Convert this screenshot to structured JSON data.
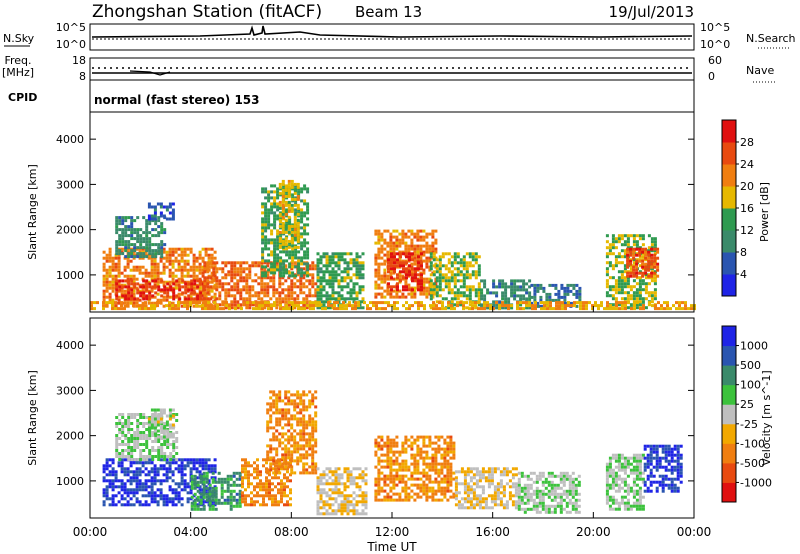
{
  "header": {
    "station": "Zhongshan Station (fitACF)",
    "beam": "Beam 13",
    "date": "19/Jul/2013"
  },
  "noise_panel": {
    "left_label": "N.Sky",
    "right_label": "N.Search",
    "left_ticks": [
      "10^5",
      "10^0"
    ],
    "right_ticks": [
      "10^5",
      "10^0"
    ]
  },
  "freq_panel": {
    "left_label_line1": "Freq.",
    "left_label_line2": "[MHz]",
    "right_label": "Nave",
    "left_ticks": [
      "18",
      "8"
    ],
    "right_ticks": [
      "60",
      "0"
    ]
  },
  "cpid_panel": {
    "label": "CPID",
    "text": "normal (fast stereo) 153"
  },
  "colors": {
    "power": [
      "#1f24e6",
      "#2a55b0",
      "#3a8a6a",
      "#2f9a50",
      "#e6b800",
      "#f07e10",
      "#e84a10",
      "#e01010"
    ],
    "velocity": [
      "#e01010",
      "#e84a10",
      "#f07e10",
      "#f2a800",
      "#bfbfbf",
      "#3cc23c",
      "#3a8a6a",
      "#2a55b0",
      "#1f24e6"
    ]
  },
  "chart_data": [
    {
      "type": "heatmap",
      "title": "",
      "ylabel": "Slant Range [km]",
      "xlabel": "",
      "ylim": [
        180,
        4600
      ],
      "y_ticks": [
        1000,
        2000,
        3000,
        4000
      ],
      "x_ticks": [],
      "colorbar": {
        "label": "Power [dB]",
        "ticks": [
          "4",
          "8",
          "12",
          "16",
          "20",
          "24",
          "28"
        ],
        "range": [
          0,
          32
        ]
      },
      "regions": [
        {
          "t": [
            0.5,
            5.0
          ],
          "r": [
            300,
            1600
          ],
          "value": 22
        },
        {
          "t": [
            1.0,
            4.5
          ],
          "r": [
            500,
            900
          ],
          "value": 28
        },
        {
          "t": [
            1.0,
            3.0
          ],
          "r": [
            1400,
            2300
          ],
          "value": 10
        },
        {
          "t": [
            2.3,
            3.3
          ],
          "r": [
            2250,
            2600
          ],
          "value": 6
        },
        {
          "t": [
            4.5,
            9.0
          ],
          "r": [
            300,
            1300
          ],
          "value": 24
        },
        {
          "t": [
            6.8,
            8.7
          ],
          "r": [
            1000,
            3000
          ],
          "value": 14
        },
        {
          "t": [
            7.5,
            8.3
          ],
          "r": [
            1600,
            3100
          ],
          "value": 18
        },
        {
          "t": [
            9.0,
            10.8
          ],
          "r": [
            300,
            1500
          ],
          "value": 14
        },
        {
          "t": [
            11.3,
            13.8
          ],
          "r": [
            500,
            2000
          ],
          "value": 22
        },
        {
          "t": [
            11.8,
            13.2
          ],
          "r": [
            700,
            1500
          ],
          "value": 28
        },
        {
          "t": [
            13.5,
            15.5
          ],
          "r": [
            300,
            1500
          ],
          "value": 16
        },
        {
          "t": [
            15.5,
            17.5
          ],
          "r": [
            300,
            900
          ],
          "value": 10
        },
        {
          "t": [
            17.5,
            19.5
          ],
          "r": [
            300,
            800
          ],
          "value": 8
        },
        {
          "t": [
            20.5,
            22.5
          ],
          "r": [
            300,
            1900
          ],
          "value": 16
        },
        {
          "t": [
            21.3,
            22.6
          ],
          "r": [
            1000,
            1600
          ],
          "value": 26
        },
        {
          "t": [
            0.0,
            24.0
          ],
          "r": [
            280,
            420
          ],
          "value": 20
        }
      ]
    },
    {
      "type": "heatmap",
      "title": "",
      "ylabel": "Slant Range [km]",
      "xlabel": "Time UT",
      "ylim": [
        180,
        4600
      ],
      "y_ticks": [
        1000,
        2000,
        3000,
        4000
      ],
      "x_ticks": [
        "00:00",
        "04:00",
        "08:00",
        "12:00",
        "16:00",
        "20:00",
        "00:00"
      ],
      "colorbar": {
        "label": "Velocity [m s^-1]",
        "ticks": [
          "1000",
          "500",
          "100",
          "25",
          "-25",
          "-100",
          "-500",
          "-1000"
        ],
        "range": [
          -1250,
          1250
        ]
      },
      "regions": [
        {
          "t": [
            0.5,
            5.0
          ],
          "r": [
            500,
            1500
          ],
          "value": 1000
        },
        {
          "t": [
            1.0,
            3.5
          ],
          "r": [
            1500,
            2500
          ],
          "value": 100
        },
        {
          "t": [
            2.3,
            3.3
          ],
          "r": [
            2000,
            2600
          ],
          "value": 25
        },
        {
          "t": [
            4.0,
            6.0
          ],
          "r": [
            400,
            1200
          ],
          "value": 500
        },
        {
          "t": [
            6.0,
            8.0
          ],
          "r": [
            500,
            1500
          ],
          "value": -500
        },
        {
          "t": [
            7.0,
            9.0
          ],
          "r": [
            1200,
            3000
          ],
          "value": -500
        },
        {
          "t": [
            9.0,
            11.0
          ],
          "r": [
            300,
            1300
          ],
          "value": -100
        },
        {
          "t": [
            11.3,
            14.5
          ],
          "r": [
            600,
            2000
          ],
          "value": -500
        },
        {
          "t": [
            14.5,
            17.0
          ],
          "r": [
            400,
            1300
          ],
          "value": -100
        },
        {
          "t": [
            17.0,
            19.5
          ],
          "r": [
            300,
            1200
          ],
          "value": 100
        },
        {
          "t": [
            20.5,
            22.0
          ],
          "r": [
            400,
            1600
          ],
          "value": 100
        },
        {
          "t": [
            22.0,
            23.5
          ],
          "r": [
            800,
            1800
          ],
          "value": 1000
        }
      ]
    }
  ]
}
